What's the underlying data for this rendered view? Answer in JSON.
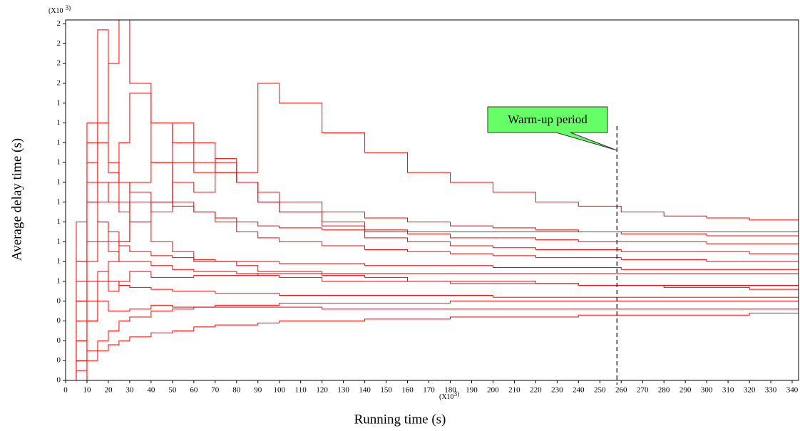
{
  "chart_data": {
    "type": "line",
    "step": true,
    "x_label": "Running time (s)",
    "y_label": "Average delay time (s)",
    "x_unit": {
      "base": "(X10",
      "exp": "3)"
    },
    "y_unit": {
      "base": "(X10",
      "exp": "3)"
    },
    "annotation": {
      "text": "Warm-up period",
      "x": 258
    },
    "xlim": [
      0,
      343
    ],
    "ylim": [
      0,
      1.82
    ],
    "xticks": [
      0,
      10,
      20,
      30,
      40,
      50,
      60,
      70,
      80,
      90,
      100,
      110,
      120,
      130,
      140,
      150,
      160,
      170,
      180,
      190,
      200,
      210,
      220,
      230,
      240,
      250,
      260,
      270,
      280,
      290,
      300,
      310,
      320,
      330,
      340
    ],
    "yticks": [
      {
        "value": 0,
        "label": "0"
      },
      {
        "value": 0.1,
        "label": "0"
      },
      {
        "value": 0.2,
        "label": "0"
      },
      {
        "value": 0.3,
        "label": "0"
      },
      {
        "value": 0.4,
        "label": "0"
      },
      {
        "value": 0.5,
        "label": "1"
      },
      {
        "value": 0.6,
        "label": "1"
      },
      {
        "value": 0.7,
        "label": "1"
      },
      {
        "value": 0.8,
        "label": "1"
      },
      {
        "value": 0.9,
        "label": "1"
      },
      {
        "value": 1.0,
        "label": "1"
      },
      {
        "value": 1.1,
        "label": "1"
      },
      {
        "value": 1.2,
        "label": "1"
      },
      {
        "value": 1.3,
        "label": "1"
      },
      {
        "value": 1.4,
        "label": "1"
      },
      {
        "value": 1.5,
        "label": "2"
      },
      {
        "value": 1.6,
        "label": "2"
      },
      {
        "value": 1.7,
        "label": "2"
      },
      {
        "value": 1.8,
        "label": "2"
      }
    ],
    "x": [
      0,
      5,
      10,
      15,
      20,
      25,
      30,
      40,
      50,
      60,
      70,
      80,
      90,
      100,
      120,
      140,
      160,
      180,
      200,
      220,
      240,
      260,
      280,
      300,
      320,
      343
    ],
    "series": [
      {
        "color": "#ff0000",
        "values": [
          0,
          0.6,
          1.2,
          1.77,
          1.1,
          0.9,
          0.8,
          0.7,
          0.65,
          0.6,
          0.6,
          0.58,
          0.55,
          0.55,
          0.53,
          0.52,
          0.5,
          0.5,
          0.5,
          0.49,
          0.48,
          0.48,
          0.47,
          0.47,
          0.46,
          0.46
        ]
      },
      {
        "color": "#ff0000",
        "values": [
          0,
          0.2,
          0.9,
          1.3,
          1.6,
          1.82,
          1.5,
          1.1,
          0.9,
          0.85,
          0.8,
          0.75,
          0.72,
          0.7,
          0.68,
          0.66,
          0.65,
          0.64,
          0.63,
          0.62,
          0.62,
          0.61,
          0.61,
          0.6,
          0.6,
          0.6
        ]
      },
      {
        "color": "#ff0000",
        "values": [
          0,
          0,
          0.3,
          0.5,
          0.6,
          0.7,
          0.8,
          0.9,
          1.0,
          0.95,
          1.05,
          1.05,
          1.5,
          1.4,
          1.25,
          1.15,
          1.05,
          1.0,
          0.95,
          0.9,
          0.88,
          0.85,
          0.83,
          0.82,
          0.81,
          0.8
        ]
      },
      {
        "color": "#ff0000",
        "values": [
          0,
          0.5,
          1.1,
          0.9,
          1.0,
          1.2,
          1.45,
          1.3,
          1.2,
          1.1,
          1.05,
          1.0,
          0.95,
          0.9,
          0.85,
          0.82,
          0.8,
          0.78,
          0.77,
          0.76,
          0.75,
          0.74,
          0.74,
          0.73,
          0.73,
          0.72
        ]
      },
      {
        "color": "#ff0000",
        "values": [
          0,
          0.8,
          1.3,
          1.0,
          0.9,
          0.85,
          1.0,
          1.1,
          1.3,
          1.2,
          1.1,
          1.0,
          0.9,
          0.85,
          0.8,
          0.76,
          0.74,
          0.72,
          0.72,
          0.71,
          0.7,
          0.7,
          0.7,
          0.69,
          0.69,
          0.69
        ]
      },
      {
        "color": "#ff0000",
        "values": [
          0,
          0.4,
          0.7,
          0.8,
          0.75,
          0.7,
          0.9,
          0.85,
          1.1,
          1.05,
          1.12,
          1.0,
          0.9,
          0.85,
          0.78,
          0.72,
          0.7,
          0.68,
          0.67,
          0.66,
          0.66,
          0.65,
          0.65,
          0.65,
          0.64,
          0.64
        ]
      },
      {
        "color": "#ff0000",
        "values": [
          0,
          0.3,
          0.6,
          0.7,
          0.65,
          0.6,
          0.6,
          0.58,
          0.56,
          0.55,
          0.55,
          0.54,
          0.53,
          0.52,
          0.5,
          0.5,
          0.5,
          0.49,
          0.49,
          0.49,
          0.48,
          0.48,
          0.48,
          0.48,
          0.48,
          0.48
        ]
      },
      {
        "color": "#ff0000",
        "values": [
          0,
          0.1,
          0.3,
          0.4,
          0.35,
          0.35,
          0.36,
          0.38,
          0.37,
          0.37,
          0.38,
          0.38,
          0.38,
          0.39,
          0.39,
          0.39,
          0.39,
          0.4,
          0.4,
          0.4,
          0.4,
          0.4,
          0.4,
          0.4,
          0.4,
          0.4
        ]
      },
      {
        "color": "#ff0000",
        "values": [
          0,
          0,
          0.1,
          0.15,
          0.18,
          0.2,
          0.22,
          0.24,
          0.25,
          0.27,
          0.28,
          0.28,
          0.29,
          0.3,
          0.3,
          0.31,
          0.31,
          0.32,
          0.32,
          0.32,
          0.33,
          0.33,
          0.33,
          0.33,
          0.34,
          0.34
        ]
      },
      {
        "color": "#ff0000",
        "values": [
          0,
          0.2,
          0.5,
          0.55,
          0.5,
          0.48,
          0.47,
          0.46,
          0.45,
          0.45,
          0.44,
          0.44,
          0.44,
          0.43,
          0.43,
          0.43,
          0.43,
          0.43,
          0.42,
          0.42,
          0.42,
          0.42,
          0.42,
          0.42,
          0.42,
          0.42
        ]
      },
      {
        "color": "#ff0000",
        "values": [
          0,
          0.6,
          1.0,
          1.2,
          1.05,
          1.0,
          0.95,
          0.9,
          0.88,
          0.85,
          0.82,
          0.8,
          0.78,
          0.77,
          0.76,
          0.75,
          0.75,
          0.75,
          0.75,
          0.75,
          0.75,
          0.75,
          0.75,
          0.75,
          0.75,
          0.75
        ]
      },
      {
        "color": "#ff0000",
        "values": [
          0,
          0.4,
          0.9,
          0.8,
          0.7,
          0.68,
          0.65,
          0.63,
          0.62,
          0.61,
          0.6,
          0.6,
          0.6,
          0.59,
          0.59,
          0.58,
          0.58,
          0.58,
          0.57,
          0.57,
          0.57,
          0.56,
          0.56,
          0.56,
          0.56,
          0.56
        ]
      },
      {
        "color": "#ff0000",
        "values": [
          0,
          0.1,
          0.4,
          0.5,
          0.45,
          0.5,
          0.55,
          0.52,
          0.52,
          0.53,
          0.53,
          0.53,
          0.54,
          0.54,
          0.54,
          0.54,
          0.54,
          0.54,
          0.54,
          0.54,
          0.54,
          0.54,
          0.54,
          0.54,
          0.54,
          0.54
        ]
      },
      {
        "color": "#ff0000",
        "values": [
          0,
          0.05,
          0.15,
          0.2,
          0.25,
          0.3,
          0.32,
          0.35,
          0.36,
          0.37,
          0.37,
          0.37,
          0.37,
          0.37,
          0.36,
          0.36,
          0.36,
          0.36,
          0.36,
          0.36,
          0.36,
          0.36,
          0.36,
          0.36,
          0.36,
          0.36
        ]
      }
    ]
  }
}
